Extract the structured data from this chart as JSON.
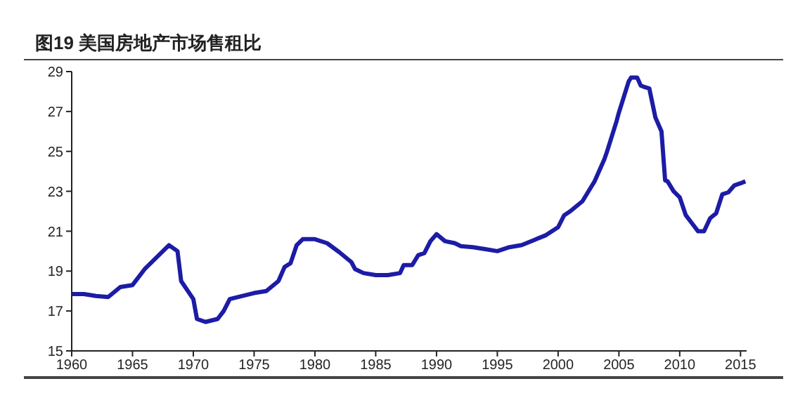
{
  "chart_data": {
    "type": "line",
    "title": "图19 美国房地产市场售租比",
    "x": [
      1960,
      1961,
      1962,
      1963,
      1964,
      1965,
      1966,
      1967,
      1968,
      1968.7,
      1969,
      1970,
      1970.3,
      1971,
      1972,
      1972.5,
      1973,
      1974,
      1975,
      1976,
      1977,
      1977.5,
      1978,
      1978.5,
      1979,
      1980,
      1981,
      1982,
      1983,
      1983.3,
      1984,
      1985,
      1986,
      1987,
      1987.3,
      1988,
      1988.5,
      1989,
      1989.5,
      1990,
      1990.7,
      1991.5,
      1992,
      1993,
      1994,
      1995,
      1996,
      1997,
      1998,
      1999,
      2000,
      2000.5,
      2001,
      2002,
      2002.8,
      2003,
      2003.8,
      2004,
      2004.8,
      2005,
      2005.8,
      2006,
      2006.5,
      2006.8,
      2007,
      2007.5,
      2008,
      2008.5,
      2008.8,
      2009,
      2009.5,
      2010,
      2010.5,
      2011,
      2011.5,
      2012,
      2012.5,
      2013,
      2013.5,
      2014,
      2014.5,
      2015,
      2015.4
    ],
    "series": [
      {
        "color": "#1c1ca6",
        "values": [
          17.85,
          17.85,
          17.75,
          17.7,
          18.2,
          18.3,
          19.1,
          19.7,
          20.3,
          20.0,
          18.5,
          17.6,
          16.6,
          16.45,
          16.6,
          17.0,
          17.6,
          17.75,
          17.9,
          18.0,
          18.5,
          19.2,
          19.4,
          20.3,
          20.6,
          20.6,
          20.4,
          19.95,
          19.45,
          19.1,
          18.9,
          18.8,
          18.8,
          18.9,
          19.3,
          19.3,
          19.8,
          19.9,
          20.5,
          20.85,
          20.5,
          20.4,
          20.25,
          20.2,
          20.1,
          20.0,
          20.2,
          20.3,
          20.55,
          20.8,
          21.2,
          21.8,
          22.0,
          22.5,
          23.3,
          23.5,
          24.6,
          24.95,
          26.5,
          26.95,
          28.5,
          28.7,
          28.7,
          28.3,
          28.25,
          28.15,
          26.7,
          26.0,
          23.55,
          23.5,
          23.0,
          22.7,
          21.8,
          21.4,
          21.0,
          21.0,
          21.65,
          21.9,
          22.85,
          22.95,
          23.3,
          23.4,
          23.5
        ]
      }
    ],
    "xlim": [
      1960,
      2015.5
    ],
    "xticks": [
      1960,
      1965,
      1970,
      1975,
      1980,
      1985,
      1990,
      1995,
      2000,
      2005,
      2010,
      2015
    ],
    "ylim": [
      15,
      29
    ],
    "yticks": [
      15,
      17,
      19,
      21,
      23,
      25,
      27,
      29
    ]
  }
}
